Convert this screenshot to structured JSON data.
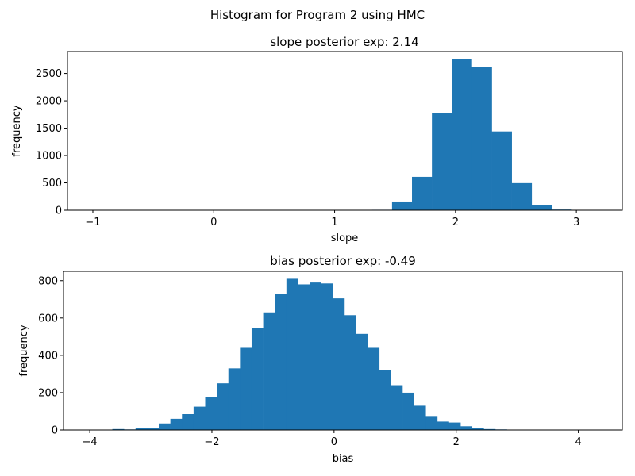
{
  "figure": {
    "suptitle": "Histogram for Program 2 using HMC"
  },
  "chart_data": [
    {
      "type": "bar",
      "subtype": "histogram",
      "title": "slope posterior exp: 2.14",
      "xlabel": "slope",
      "ylabel": "frequency",
      "color": "#1f77b4",
      "xlim": [
        -1.21,
        3.38
      ],
      "ylim": [
        0,
        2900
      ],
      "xticks": [
        -1,
        0,
        1,
        2,
        3
      ],
      "xtick_labels": [
        "−1",
        "0",
        "1",
        "2",
        "3"
      ],
      "yticks": [
        0,
        500,
        1000,
        1500,
        2000,
        2500
      ],
      "ytick_labels": [
        "0",
        "500",
        "1000",
        "1500",
        "2000",
        "2500"
      ],
      "bin_edges": [
        -1.0,
        -0.835,
        -0.67,
        -0.505,
        -0.34,
        -0.175,
        -0.01,
        0.155,
        0.32,
        0.485,
        0.65,
        0.815,
        0.98,
        1.145,
        1.31,
        1.475,
        1.64,
        1.805,
        1.97,
        2.135,
        2.3,
        2.465,
        2.63,
        2.795,
        2.96,
        3.125
      ],
      "values": [
        1,
        0,
        0,
        0,
        0,
        0,
        0,
        0,
        0,
        0,
        0,
        0,
        0,
        0,
        8,
        160,
        610,
        1770,
        2760,
        2610,
        1440,
        495,
        100,
        12,
        1
      ],
      "grid": false,
      "legend": null
    },
    {
      "type": "bar",
      "subtype": "histogram",
      "title": "bias posterior exp: -0.49",
      "xlabel": "bias",
      "ylabel": "frequency",
      "color": "#1f77b4",
      "xlim": [
        -4.43,
        4.72
      ],
      "ylim": [
        0,
        850
      ],
      "xticks": [
        -4,
        -2,
        0,
        2,
        4
      ],
      "xtick_labels": [
        "−4",
        "−2",
        "0",
        "2",
        "4"
      ],
      "yticks": [
        0,
        200,
        400,
        600,
        800
      ],
      "ytick_labels": [
        "0",
        "200",
        "400",
        "600",
        "800"
      ],
      "bin_edges": [
        -4.01,
        -3.82,
        -3.63,
        -3.44,
        -3.25,
        -3.06,
        -2.87,
        -2.68,
        -2.49,
        -2.3,
        -2.11,
        -1.92,
        -1.73,
        -1.54,
        -1.35,
        -1.16,
        -0.97,
        -0.78,
        -0.59,
        -0.4,
        -0.21,
        -0.02,
        0.17,
        0.36,
        0.55,
        0.74,
        0.93,
        1.12,
        1.31,
        1.5,
        1.69,
        1.88,
        2.07,
        2.26,
        2.45,
        2.64,
        2.83,
        3.02,
        3.21,
        3.4,
        3.59,
        3.78,
        3.97,
        4.16,
        4.35
      ],
      "values": [
        2,
        0,
        5,
        3,
        10,
        10,
        35,
        60,
        85,
        125,
        175,
        250,
        330,
        440,
        545,
        630,
        730,
        810,
        780,
        790,
        785,
        705,
        615,
        515,
        440,
        320,
        240,
        200,
        130,
        75,
        45,
        40,
        20,
        10,
        5,
        3,
        0,
        0,
        0,
        0,
        0,
        0,
        2,
        0
      ],
      "grid": false,
      "legend": null
    }
  ]
}
